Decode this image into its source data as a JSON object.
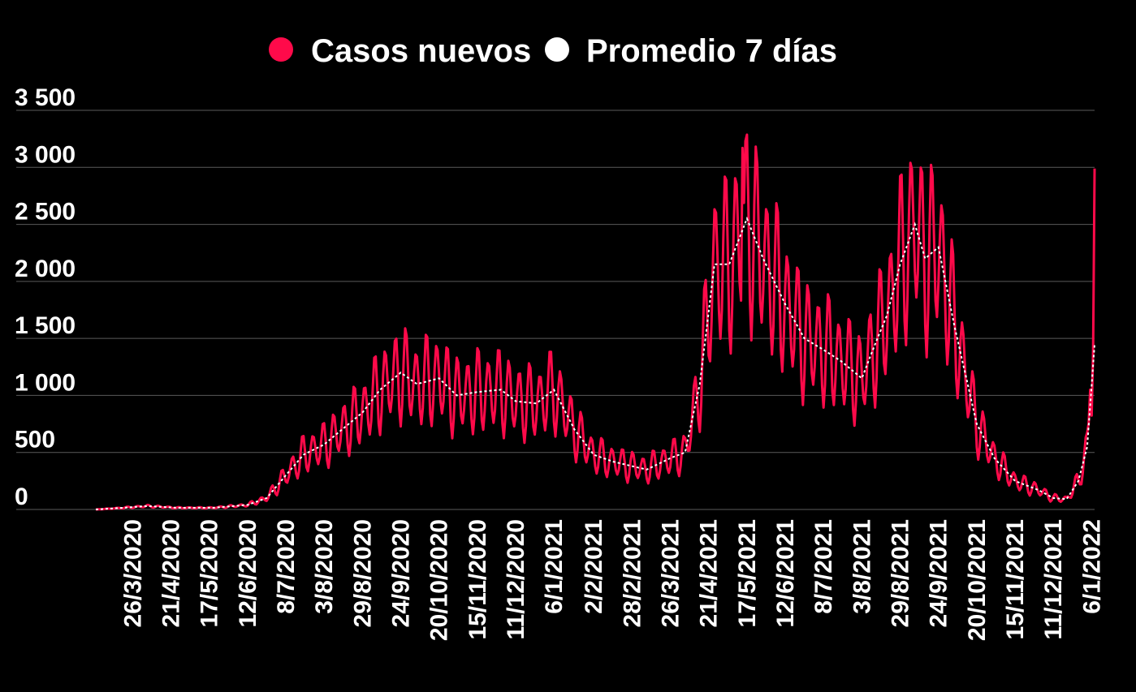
{
  "chart_data": {
    "type": "line",
    "title": "",
    "xlabel": "",
    "ylabel": "",
    "ylim": [
      0,
      3500
    ],
    "yticks": [
      0,
      500,
      1000,
      1500,
      2000,
      2500,
      3000,
      3500
    ],
    "ytick_labels": [
      "0",
      "500",
      "1 000",
      "1 500",
      "2 000",
      "2 500",
      "3 000",
      "3 500"
    ],
    "grid": true,
    "legend_position": "top-center",
    "x_start": "2020-03-01",
    "x_end": "2022-01-08",
    "xtick_labels": [
      "26/3/2020",
      "21/4/2020",
      "17/5/2020",
      "12/6/2020",
      "8/7/2020",
      "3/8/2020",
      "29/8/2020",
      "24/9/2020",
      "20/10/2020",
      "15/11/2020",
      "11/12/2020",
      "6/1/2021",
      "2/2/2021",
      "28/2/2021",
      "26/3/2021",
      "21/4/2021",
      "17/5/2021",
      "12/6/2021",
      "8/7/2021",
      "3/8/2021",
      "29/8/2021",
      "24/9/2021",
      "20/10/2021",
      "15/11/2021",
      "11/12/2021",
      "6/1/2022"
    ],
    "series": [
      {
        "name": "Casos nuevos",
        "color": "#ff0a4a",
        "style": "daily-oscillating",
        "approx_peak_value": 3170,
        "last_value": 2990
      },
      {
        "name": "Promedio 7 días",
        "color": "#ffffff",
        "style": "dashed"
      }
    ],
    "trend_points": [
      [
        "2020-03-01",
        0
      ],
      [
        "2020-03-20",
        15
      ],
      [
        "2020-04-05",
        30
      ],
      [
        "2020-04-25",
        15
      ],
      [
        "2020-05-20",
        15
      ],
      [
        "2020-06-12",
        40
      ],
      [
        "2020-06-25",
        100
      ],
      [
        "2020-07-08",
        300
      ],
      [
        "2020-07-20",
        480
      ],
      [
        "2020-08-03",
        570
      ],
      [
        "2020-08-15",
        700
      ],
      [
        "2020-08-29",
        850
      ],
      [
        "2020-09-10",
        1050
      ],
      [
        "2020-09-24",
        1200
      ],
      [
        "2020-10-05",
        1100
      ],
      [
        "2020-10-20",
        1150
      ],
      [
        "2020-11-01",
        1000
      ],
      [
        "2020-11-15",
        1030
      ],
      [
        "2020-12-01",
        1050
      ],
      [
        "2020-12-11",
        950
      ],
      [
        "2020-12-25",
        930
      ],
      [
        "2021-01-06",
        1050
      ],
      [
        "2021-01-20",
        700
      ],
      [
        "2021-02-02",
        480
      ],
      [
        "2021-02-15",
        420
      ],
      [
        "2021-02-28",
        380
      ],
      [
        "2021-03-10",
        350
      ],
      [
        "2021-03-26",
        450
      ],
      [
        "2021-04-05",
        500
      ],
      [
        "2021-04-15",
        1100
      ],
      [
        "2021-04-25",
        2150
      ],
      [
        "2021-05-05",
        2150
      ],
      [
        "2021-05-17",
        2550
      ],
      [
        "2021-05-28",
        2200
      ],
      [
        "2021-06-12",
        1800
      ],
      [
        "2021-06-25",
        1500
      ],
      [
        "2021-07-08",
        1400
      ],
      [
        "2021-07-20",
        1300
      ],
      [
        "2021-08-03",
        1150
      ],
      [
        "2021-08-12",
        1450
      ],
      [
        "2021-08-20",
        1700
      ],
      [
        "2021-08-29",
        2150
      ],
      [
        "2021-09-08",
        2500
      ],
      [
        "2021-09-15",
        2200
      ],
      [
        "2021-09-24",
        2300
      ],
      [
        "2021-10-05",
        1600
      ],
      [
        "2021-10-20",
        750
      ],
      [
        "2021-11-01",
        450
      ],
      [
        "2021-11-15",
        250
      ],
      [
        "2021-12-01",
        170
      ],
      [
        "2021-12-11",
        100
      ],
      [
        "2021-12-20",
        90
      ],
      [
        "2021-12-28",
        250
      ],
      [
        "2022-01-03",
        550
      ],
      [
        "2022-01-08",
        1450
      ]
    ]
  }
}
